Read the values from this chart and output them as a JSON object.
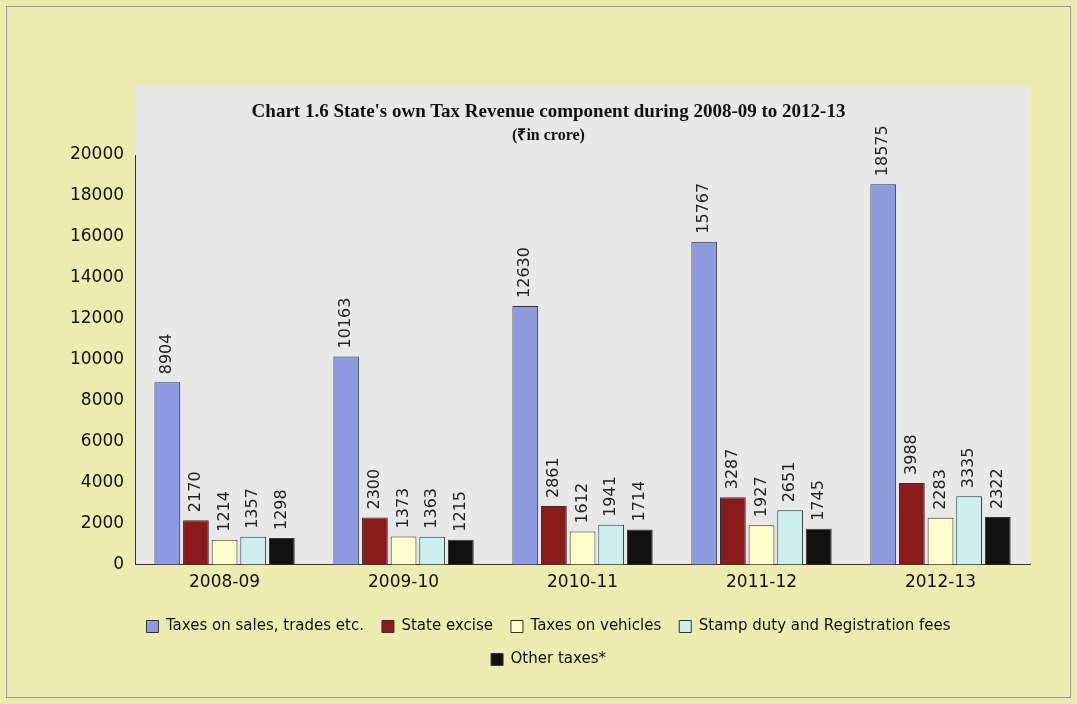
{
  "chart_data": {
    "type": "bar",
    "title": "Chart 1.6 State's own Tax Revenue component during 2008-09 to 2012-13",
    "subtitle": "(₹in crore)",
    "categories": [
      "2008-09",
      "2009-10",
      "2010-11",
      "2011-12",
      "2012-13"
    ],
    "series": [
      {
        "name": "Taxes on sales, trades etc.",
        "color": "#8e9ae0",
        "values": [
          8904,
          10163,
          12630,
          15767,
          18575
        ]
      },
      {
        "name": "State excise",
        "color": "#8b1a1a",
        "values": [
          2170,
          2300,
          2861,
          3287,
          3988
        ]
      },
      {
        "name": "Taxes on vehicles",
        "color": "#ffffcc",
        "values": [
          1214,
          1373,
          1612,
          1927,
          2283
        ]
      },
      {
        "name": "Stamp duty and Registration fees",
        "color": "#ccf0f0",
        "values": [
          1357,
          1363,
          1941,
          2651,
          3335
        ]
      },
      {
        "name": "Other taxes*",
        "color": "#111111",
        "values": [
          1298,
          1215,
          1714,
          1745,
          2322
        ]
      }
    ],
    "ylim": [
      0,
      20000
    ],
    "yticks": [
      0,
      2000,
      4000,
      6000,
      8000,
      10000,
      12000,
      14000,
      16000,
      18000,
      20000
    ],
    "grid": false,
    "legend": "bottom",
    "data_labels": true
  }
}
